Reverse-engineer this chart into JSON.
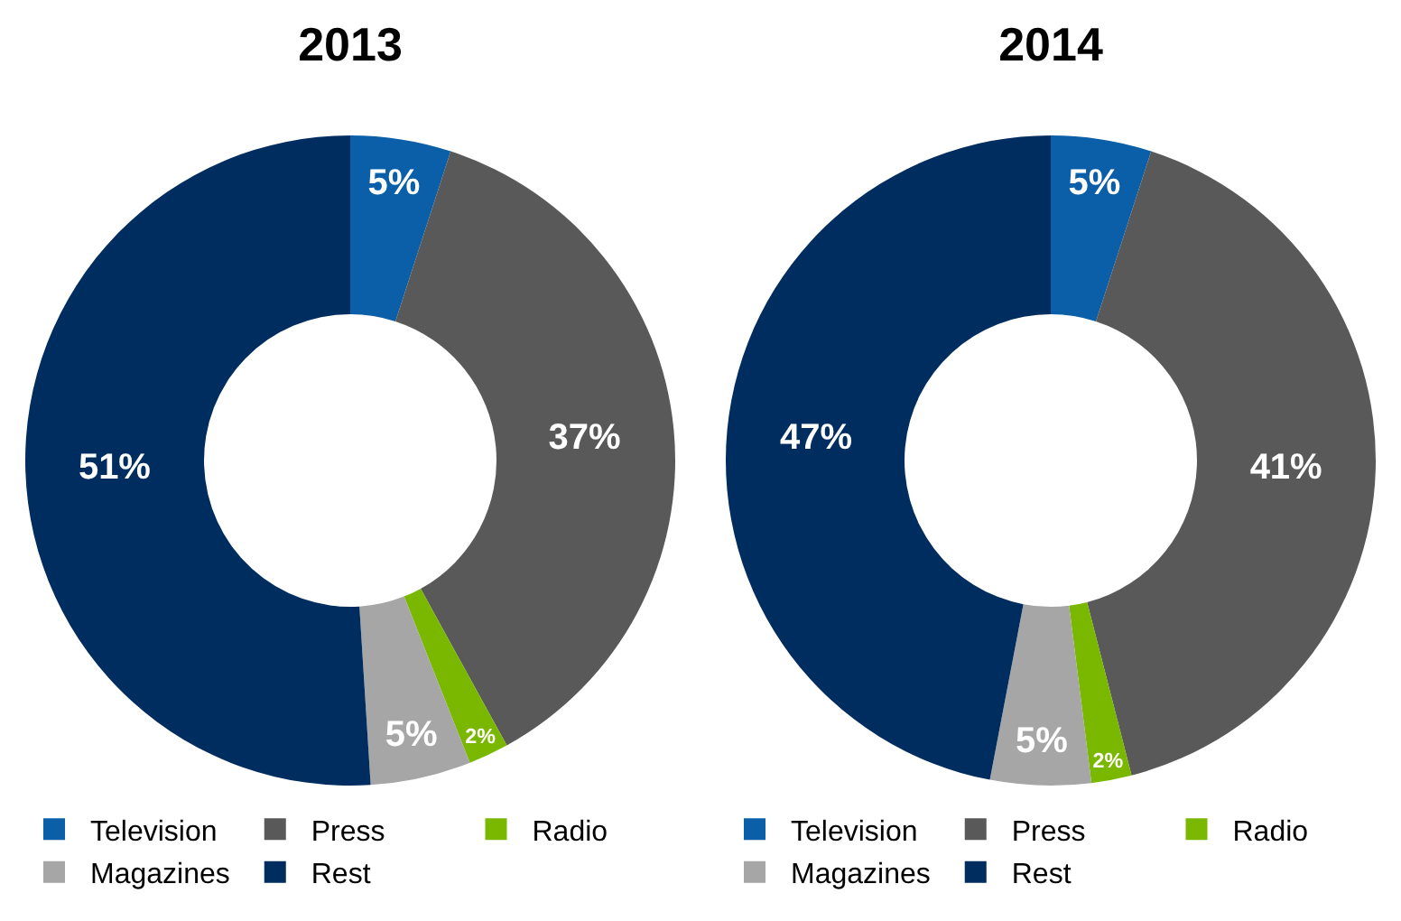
{
  "chart_data": [
    {
      "type": "donut",
      "title": "2013",
      "categories": [
        "Television",
        "Press",
        "Radio",
        "Magazines",
        "Rest"
      ],
      "values": [
        5,
        37,
        2,
        5,
        51
      ],
      "colors": [
        "#0b5fa8",
        "#595959",
        "#7ab800",
        "#a6a6a6",
        "#002d5f"
      ],
      "value_labels": [
        "5%",
        "37%",
        "2%",
        "5%",
        "51%"
      ],
      "legend": "bottom"
    },
    {
      "type": "donut",
      "title": "2014",
      "categories": [
        "Television",
        "Press",
        "Radio",
        "Magazines",
        "Rest"
      ],
      "values": [
        5,
        41,
        2,
        5,
        47
      ],
      "colors": [
        "#0b5fa8",
        "#595959",
        "#7ab800",
        "#a6a6a6",
        "#002d5f"
      ],
      "value_labels": [
        "5%",
        "41%",
        "2%",
        "5%",
        "47%"
      ],
      "legend": "bottom"
    }
  ]
}
